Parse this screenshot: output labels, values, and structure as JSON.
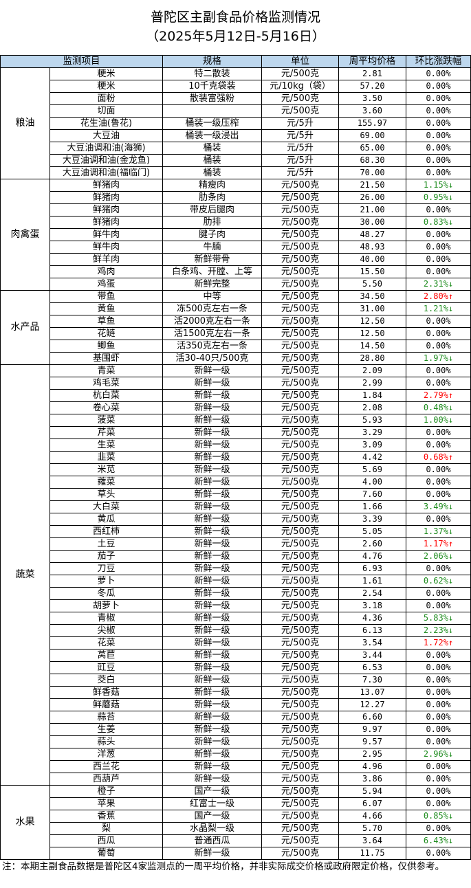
{
  "title": "普陀区主副食品价格监测情况",
  "subtitle": "（2025年5月12日-5月16日）",
  "headers": {
    "item": "监测项目",
    "spec": "规格",
    "unit": "单位",
    "price": "周平均价格",
    "change": "环比涨跌幅"
  },
  "colors": {
    "header_bg": "#bdd7ee",
    "down": "#1e8c1e",
    "up": "#ff0000"
  },
  "categories": [
    {
      "name": "粮油",
      "rows": [
        {
          "item": "粳米",
          "spec": "特二散装",
          "unit": "元/500克",
          "price": "2.81",
          "change": "0.00%",
          "dir": ""
        },
        {
          "item": "粳米",
          "spec": "10千克袋装",
          "unit": "元/10kg（袋）",
          "price": "57.20",
          "change": "0.00%",
          "dir": ""
        },
        {
          "item": "面粉",
          "spec": "散装富强粉",
          "unit": "元/500克",
          "price": "3.50",
          "change": "0.00%",
          "dir": ""
        },
        {
          "item": "切面",
          "spec": "",
          "unit": "元/500克",
          "price": "3.60",
          "change": "0.00%",
          "dir": ""
        },
        {
          "item": "花生油(鲁花)",
          "spec": "桶装一级压榨",
          "unit": "元/5升",
          "price": "155.97",
          "change": "0.00%",
          "dir": ""
        },
        {
          "item": "大豆油",
          "spec": "桶装一级浸出",
          "unit": "元/5升",
          "price": "69.00",
          "change": "0.00%",
          "dir": ""
        },
        {
          "item": "大豆油调和油(海狮)",
          "spec": "桶装",
          "unit": "元/5升",
          "price": "65.00",
          "change": "0.00%",
          "dir": ""
        },
        {
          "item": "大豆油调和油(金龙鱼)",
          "spec": "桶装",
          "unit": "元/5升",
          "price": "68.30",
          "change": "0.00%",
          "dir": ""
        },
        {
          "item": "大豆油调和油(福临门)",
          "spec": "桶装",
          "unit": "元/5升",
          "price": "70.00",
          "change": "0.00%",
          "dir": ""
        }
      ]
    },
    {
      "name": "肉禽蛋",
      "rows": [
        {
          "item": "鲜猪肉",
          "spec": "精瘦肉",
          "unit": "元/500克",
          "price": "21.50",
          "change": "1.15%",
          "dir": "down"
        },
        {
          "item": "鲜猪肉",
          "spec": "肋条肉",
          "unit": "元/500克",
          "price": "26.00",
          "change": "0.95%",
          "dir": "down"
        },
        {
          "item": "鲜猪肉",
          "spec": "带皮后腿肉",
          "unit": "元/500克",
          "price": "21.00",
          "change": "0.00%",
          "dir": ""
        },
        {
          "item": "鲜猪肉",
          "spec": "肋排",
          "unit": "元/500克",
          "price": "30.00",
          "change": "0.83%",
          "dir": "down"
        },
        {
          "item": "鲜牛肉",
          "spec": "腱子肉",
          "unit": "元/500克",
          "price": "48.27",
          "change": "0.00%",
          "dir": ""
        },
        {
          "item": "鲜牛肉",
          "spec": "牛腩",
          "unit": "元/500克",
          "price": "48.93",
          "change": "0.00%",
          "dir": ""
        },
        {
          "item": "鲜羊肉",
          "spec": "新鲜带骨",
          "unit": "元/500克",
          "price": "40.00",
          "change": "0.00%",
          "dir": ""
        },
        {
          "item": "鸡肉",
          "spec": "白条鸡、开膛、上等",
          "unit": "元/500克",
          "price": "15.50",
          "change": "0.00%",
          "dir": ""
        },
        {
          "item": "鸡蛋",
          "spec": "新鲜完整",
          "unit": "元/500克",
          "price": "5.50",
          "change": "2.31%",
          "dir": "down"
        }
      ]
    },
    {
      "name": "水产品",
      "rows": [
        {
          "item": "带鱼",
          "spec": "中等",
          "unit": "元/500克",
          "price": "34.50",
          "change": "2.80%",
          "dir": "up"
        },
        {
          "item": "黄鱼",
          "spec": "冻500克左右一条",
          "unit": "元/500克",
          "price": "31.00",
          "change": "1.21%",
          "dir": "down"
        },
        {
          "item": "草鱼",
          "spec": "活2000克左右一条",
          "unit": "元/500克",
          "price": "12.50",
          "change": "0.00%",
          "dir": ""
        },
        {
          "item": "花鲢",
          "spec": "活1500克左右一条",
          "unit": "元/500克",
          "price": "12.50",
          "change": "0.00%",
          "dir": ""
        },
        {
          "item": "鲫鱼",
          "spec": "活350克左右一条",
          "unit": "元/500克",
          "price": "14.50",
          "change": "0.00%",
          "dir": ""
        },
        {
          "item": "基围虾",
          "spec": "活30-40只/500克",
          "unit": "元/500克",
          "price": "28.80",
          "change": "1.97%",
          "dir": "down"
        }
      ]
    },
    {
      "name": "蔬菜",
      "rows": [
        {
          "item": "青菜",
          "spec": "新鲜一级",
          "unit": "元/500克",
          "price": "2.09",
          "change": "0.00%",
          "dir": ""
        },
        {
          "item": "鸡毛菜",
          "spec": "新鲜一级",
          "unit": "元/500克",
          "price": "2.99",
          "change": "0.00%",
          "dir": ""
        },
        {
          "item": "杭白菜",
          "spec": "新鲜一级",
          "unit": "元/500克",
          "price": "1.84",
          "change": "2.79%",
          "dir": "up"
        },
        {
          "item": "卷心菜",
          "spec": "新鲜一级",
          "unit": "元/500克",
          "price": "2.08",
          "change": "0.48%",
          "dir": "down"
        },
        {
          "item": "菠菜",
          "spec": "新鲜一级",
          "unit": "元/500克",
          "price": "5.93",
          "change": "1.00%",
          "dir": "down"
        },
        {
          "item": "芹菜",
          "spec": "新鲜一级",
          "unit": "元/500克",
          "price": "3.29",
          "change": "0.00%",
          "dir": ""
        },
        {
          "item": "生菜",
          "spec": "新鲜一级",
          "unit": "元/500克",
          "price": "3.09",
          "change": "0.00%",
          "dir": ""
        },
        {
          "item": "韭菜",
          "spec": "新鲜一级",
          "unit": "元/500克",
          "price": "4.42",
          "change": "0.68%",
          "dir": "up"
        },
        {
          "item": "米苋",
          "spec": "新鲜一级",
          "unit": "元/500克",
          "price": "5.69",
          "change": "0.00%",
          "dir": ""
        },
        {
          "item": "蕹菜",
          "spec": "新鲜一级",
          "unit": "元/500克",
          "price": "4.00",
          "change": "0.00%",
          "dir": ""
        },
        {
          "item": "草头",
          "spec": "新鲜一级",
          "unit": "元/500克",
          "price": "7.60",
          "change": "0.00%",
          "dir": ""
        },
        {
          "item": "大白菜",
          "spec": "新鲜一级",
          "unit": "元/500克",
          "price": "1.66",
          "change": "3.49%",
          "dir": "down"
        },
        {
          "item": "黄瓜",
          "spec": "新鲜一级",
          "unit": "元/500克",
          "price": "3.39",
          "change": "0.00%",
          "dir": ""
        },
        {
          "item": "西红柿",
          "spec": "新鲜一级",
          "unit": "元/500克",
          "price": "5.05",
          "change": "1.37%",
          "dir": "down"
        },
        {
          "item": "土豆",
          "spec": "新鲜一级",
          "unit": "元/500克",
          "price": "2.60",
          "change": "1.17%",
          "dir": "up"
        },
        {
          "item": "茄子",
          "spec": "新鲜一级",
          "unit": "元/500克",
          "price": "4.76",
          "change": "2.06%",
          "dir": "down"
        },
        {
          "item": "刀豆",
          "spec": "新鲜一级",
          "unit": "元/500克",
          "price": "6.93",
          "change": "0.00%",
          "dir": ""
        },
        {
          "item": "萝卜",
          "spec": "新鲜一级",
          "unit": "元/500克",
          "price": "1.61",
          "change": "0.62%",
          "dir": "down"
        },
        {
          "item": "冬瓜",
          "spec": "新鲜一级",
          "unit": "元/500克",
          "price": "2.54",
          "change": "0.00%",
          "dir": ""
        },
        {
          "item": "胡萝卜",
          "spec": "新鲜一级",
          "unit": "元/500克",
          "price": "3.18",
          "change": "0.00%",
          "dir": ""
        },
        {
          "item": "青椒",
          "spec": "新鲜一级",
          "unit": "元/500克",
          "price": "4.36",
          "change": "5.83%",
          "dir": "down"
        },
        {
          "item": "尖椒",
          "spec": "新鲜一级",
          "unit": "元/500克",
          "price": "6.13",
          "change": "2.23%",
          "dir": "down"
        },
        {
          "item": "花菜",
          "spec": "新鲜一级",
          "unit": "元/500克",
          "price": "3.54",
          "change": "1.72%",
          "dir": "up"
        },
        {
          "item": "莴苣",
          "spec": "新鲜一级",
          "unit": "元/500克",
          "price": "3.44",
          "change": "0.00%",
          "dir": ""
        },
        {
          "item": "豇豆",
          "spec": "新鲜一级",
          "unit": "元/500克",
          "price": "6.53",
          "change": "0.00%",
          "dir": ""
        },
        {
          "item": "茭白",
          "spec": "新鲜一级",
          "unit": "元/500克",
          "price": "7.30",
          "change": "0.00%",
          "dir": ""
        },
        {
          "item": "鲜香菇",
          "spec": "新鲜一级",
          "unit": "元/500克",
          "price": "13.07",
          "change": "0.00%",
          "dir": ""
        },
        {
          "item": "鲜蘑菇",
          "spec": "新鲜一级",
          "unit": "元/500克",
          "price": "12.27",
          "change": "0.00%",
          "dir": ""
        },
        {
          "item": "蒜苔",
          "spec": "新鲜一级",
          "unit": "元/500克",
          "price": "6.60",
          "change": "0.00%",
          "dir": ""
        },
        {
          "item": "生姜",
          "spec": "新鲜一级",
          "unit": "元/500克",
          "price": "9.97",
          "change": "0.00%",
          "dir": ""
        },
        {
          "item": "蒜头",
          "spec": "新鲜一级",
          "unit": "元/500克",
          "price": "9.57",
          "change": "0.00%",
          "dir": ""
        },
        {
          "item": "洋葱",
          "spec": "新鲜一级",
          "unit": "元/500克",
          "price": "2.95",
          "change": "2.96%",
          "dir": "down"
        },
        {
          "item": "西兰花",
          "spec": "新鲜一级",
          "unit": "元/500克",
          "price": "4.96",
          "change": "0.00%",
          "dir": ""
        },
        {
          "item": "西葫芦",
          "spec": "新鲜一级",
          "unit": "元/500克",
          "price": "3.86",
          "change": "0.00%",
          "dir": ""
        }
      ]
    },
    {
      "name": "水果",
      "rows": [
        {
          "item": "橙子",
          "spec": "国产一级",
          "unit": "元/500克",
          "price": "5.94",
          "change": "0.00%",
          "dir": ""
        },
        {
          "item": "苹果",
          "spec": "红富士一级",
          "unit": "元/500克",
          "price": "6.07",
          "change": "0.00%",
          "dir": ""
        },
        {
          "item": "香蕉",
          "spec": "国产一级",
          "unit": "元/500克",
          "price": "4.66",
          "change": "0.85%",
          "dir": "down"
        },
        {
          "item": "梨",
          "spec": "水晶梨一级",
          "unit": "元/500克",
          "price": "5.70",
          "change": "0.00%",
          "dir": ""
        },
        {
          "item": "西瓜",
          "spec": "普通西瓜",
          "unit": "元/500克",
          "price": "3.64",
          "change": "6.43%",
          "dir": "down"
        },
        {
          "item": "葡萄",
          "spec": "新鲜一级",
          "unit": "元/500克",
          "price": "11.75",
          "change": "0.00%",
          "dir": ""
        }
      ]
    }
  ],
  "arrows": {
    "down": "↓",
    "up": "↑"
  },
  "note": "注：本期主副食品数据是普陀区4家监测点的一周平均价格，并非实际成交价格或政府限定价格，仅供参考。"
}
